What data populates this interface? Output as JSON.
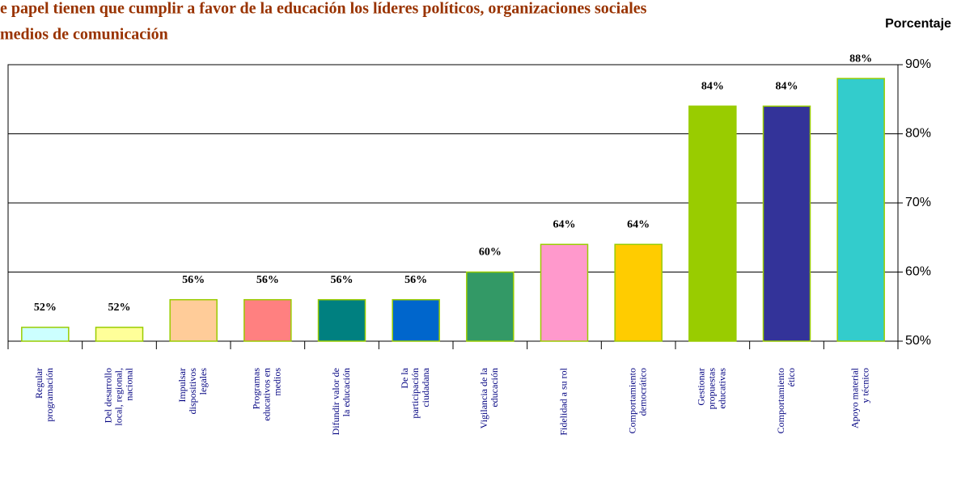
{
  "chart_data": {
    "type": "bar",
    "title_lines": [
      "e papel tienen que cumplir a favor de la educación los líderes políticos, organizaciones sociales",
      "medios de comunicación"
    ],
    "y_axis_label": "Porcentaje",
    "categories": [
      [
        "Regular",
        "programación"
      ],
      [
        "Del desarrollo",
        "local, regional,",
        "nacional"
      ],
      [
        "Impulsar",
        "dispositivos",
        "legales"
      ],
      [
        "Programas",
        "educativos en",
        "medios"
      ],
      [
        "Difundir valor de",
        "la educación"
      ],
      [
        "De la",
        "participación",
        "ciudadana"
      ],
      [
        "Vigilancia de la",
        "educación"
      ],
      [
        "Fidelidad a su rol"
      ],
      [
        "Comportamiento",
        "democrático"
      ],
      [
        "Gestionar",
        "propuestas",
        "educativas"
      ],
      [
        "Comportamiento",
        "ético"
      ],
      [
        "Apoyo material",
        "y técnico"
      ]
    ],
    "values": [
      52,
      52,
      56,
      56,
      56,
      56,
      60,
      64,
      64,
      84,
      84,
      88
    ],
    "value_labels": [
      "52%",
      "52%",
      "56%",
      "56%",
      "56%",
      "56%",
      "60%",
      "64%",
      "64%",
      "84%",
      "84%",
      "88%"
    ],
    "colors": [
      "#ccffff",
      "#ffff99",
      "#ffcc99",
      "#ff8080",
      "#008080",
      "#0066cc",
      "#339966",
      "#ff99cc",
      "#ffcc00",
      "#99cc00",
      "#333399",
      "#33cccc"
    ],
    "bar_edge_color": "#99cc00",
    "ylim": [
      50,
      90
    ],
    "yticks": [
      {
        "value": 50,
        "label": "50%"
      },
      {
        "value": 60,
        "label": "60%"
      },
      {
        "value": 70,
        "label": "70%"
      },
      {
        "value": 80,
        "label": "80%"
      },
      {
        "value": 90,
        "label": "90%"
      }
    ],
    "grid": true,
    "y_axis_side": "right"
  }
}
